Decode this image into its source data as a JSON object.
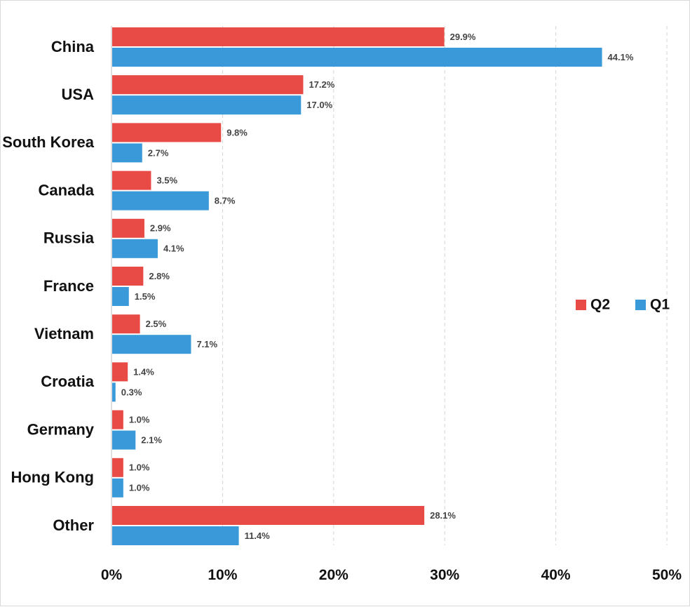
{
  "chart_data": {
    "type": "bar",
    "orientation": "horizontal",
    "categories": [
      "China",
      "USA",
      "South Korea",
      "Canada",
      "Russia",
      "France",
      "Vietnam",
      "Croatia",
      "Germany",
      "Hong Kong",
      "Other"
    ],
    "series": [
      {
        "name": "Q2",
        "color": "#e84a45",
        "values": [
          29.9,
          17.2,
          9.8,
          3.5,
          2.9,
          2.8,
          2.5,
          1.4,
          1.0,
          1.0,
          28.1
        ],
        "labels": [
          "29.9%",
          "17.2%",
          "9.8%",
          "3.5%",
          "2.9%",
          "2.8%",
          "2.5%",
          "1.4%",
          "1.0%",
          "1.0%",
          "28.1%"
        ]
      },
      {
        "name": "Q1",
        "color": "#3a9ad9",
        "values": [
          44.1,
          17.0,
          2.7,
          8.7,
          4.1,
          1.5,
          7.1,
          0.3,
          2.1,
          1.0,
          11.4
        ],
        "labels": [
          "44.1%",
          "17.0%",
          "2.7%",
          "8.7%",
          "4.1%",
          "1.5%",
          "7.1%",
          "0.3%",
          "2.1%",
          "1.0%",
          "11.4%"
        ]
      }
    ],
    "xlim": [
      0,
      50
    ],
    "x_ticks": [
      0,
      10,
      20,
      30,
      40,
      50
    ],
    "x_tick_labels": [
      "0%",
      "10%",
      "20%",
      "30%",
      "40%",
      "50%"
    ],
    "grid": "vertical-dashed",
    "legend": "right"
  }
}
